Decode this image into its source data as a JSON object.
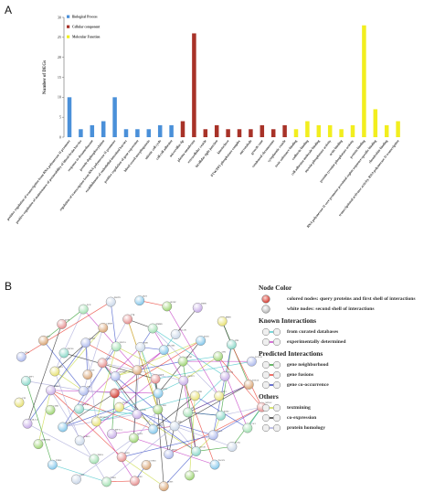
{
  "panel_a_label": "A",
  "panel_b_label": "B",
  "chart_data": {
    "type": "bar",
    "ylabel": "Number of DEGs",
    "xlabel": "",
    "ylim": [
      0,
      30
    ],
    "yticks": [
      0,
      5,
      10,
      15,
      20,
      25,
      30
    ],
    "legend_position": "top-left",
    "series": [
      {
        "name": "Biological Process",
        "color": "#4a90d9",
        "categories": [
          "positive regulation of transcription from RNA polymerase II promoter",
          "positive regulation of maintenance of permeability of blood-brain barrier",
          "response to dexamethasone",
          "protein dephosphorylation",
          "regulation of transcription from RNA polymerase II promoter",
          "establishment of endothelial intestinal barrier",
          "positive regulation of gene expression",
          "blood vessel morphogenesis",
          "mitotic cell cycle",
          "cell-cell adhesion"
        ],
        "values": [
          10,
          2,
          3,
          4,
          10,
          2,
          2,
          2,
          3,
          3
        ]
      },
      {
        "name": "Cellular component",
        "color": "#a83228",
        "categories": [
          "microvillus tip",
          "plasma membrane",
          "extracellular vesicle",
          "bicellular tight junction",
          "kinetochore",
          "PTW/PP1 phosphatase complex",
          "microtubule",
          "growth cone",
          "condensed chromosome",
          "cytoplasmic vesicle"
        ],
        "values": [
          4,
          26,
          2,
          3,
          2,
          2,
          2,
          3,
          2,
          3
        ]
      },
      {
        "name": "Molecular Function",
        "color": "#f2ee1e",
        "categories": [
          "toxic substance binding",
          "cadherin binding",
          "cell adhesion molecule binding",
          "myosin phosphatase activity",
          "actin binding",
          "protein tyrosine phosphatase activity",
          "protein binding",
          "RNA polymerase II core promoter proximal region sequence-specific binding",
          "chondroitin binding",
          "transcriptional activator activity, RNA polymerase II transcription"
        ],
        "values": [
          2,
          4,
          3,
          3,
          2,
          3,
          28,
          7,
          3,
          4
        ]
      }
    ]
  },
  "network": {
    "nodes": [
      {
        "id": "n1",
        "label": "PTPN5"
      },
      {
        "id": "n2",
        "label": "CDH5"
      },
      {
        "id": "n3",
        "label": "MYH9"
      },
      {
        "id": "n4",
        "label": "ITGB1"
      },
      {
        "id": "n5",
        "label": "ACTB"
      },
      {
        "id": "n6",
        "label": "CTNNB1"
      },
      {
        "id": "n7",
        "label": "SRC"
      },
      {
        "id": "n8",
        "label": "EGFR"
      },
      {
        "id": "n9",
        "label": "VCL"
      },
      {
        "id": "n10",
        "label": "TJP1"
      },
      {
        "id": "n11",
        "label": "CLDN5"
      },
      {
        "id": "n12",
        "label": "OCLN"
      },
      {
        "id": "n13",
        "label": "PPP1CA"
      },
      {
        "id": "n14",
        "label": "PPP1R12A"
      },
      {
        "id": "n15",
        "label": "MAPK1"
      },
      {
        "id": "n16",
        "label": "JUN"
      },
      {
        "id": "n17",
        "label": "FOS"
      },
      {
        "id": "n18",
        "label": "STAT3"
      },
      {
        "id": "n19",
        "label": "VEGFA"
      },
      {
        "id": "n20",
        "label": "KDR"
      },
      {
        "id": "n21",
        "label": "PECAM1"
      },
      {
        "id": "n22",
        "label": "ESAM"
      },
      {
        "id": "n23",
        "label": "ANGPT2"
      },
      {
        "id": "n24",
        "label": "TEK"
      },
      {
        "id": "n25",
        "label": "CDC20"
      },
      {
        "id": "n26",
        "label": "BUB1"
      },
      {
        "id": "n27",
        "label": "CCNB1"
      },
      {
        "id": "n28",
        "label": "KIF11"
      },
      {
        "id": "n29",
        "label": "TOP2A"
      },
      {
        "id": "n30",
        "label": "AURKA"
      },
      {
        "id": "n31",
        "label": "PLK1"
      },
      {
        "id": "n32",
        "label": "CDK1"
      },
      {
        "id": "n33",
        "label": "MKI67"
      },
      {
        "id": "n34",
        "label": "NUF2"
      },
      {
        "id": "n35",
        "label": "NDC80"
      },
      {
        "id": "n36",
        "label": "ZWINT"
      },
      {
        "id": "n37",
        "label": "CENPF"
      },
      {
        "id": "n38",
        "label": "TTK"
      },
      {
        "id": "n39",
        "label": "HMMR"
      },
      {
        "id": "n40",
        "label": "DLGAP5"
      },
      {
        "id": "n41",
        "label": "EGR1"
      },
      {
        "id": "n42",
        "label": "ATF3"
      },
      {
        "id": "n43",
        "label": "KLF4"
      },
      {
        "id": "n44",
        "label": "MYC"
      },
      {
        "id": "n45",
        "label": "SOX2"
      },
      {
        "id": "n46",
        "label": "NR4A1"
      },
      {
        "id": "n47",
        "label": "DUSP1"
      },
      {
        "id": "n48",
        "label": "IER2"
      },
      {
        "id": "n49",
        "label": "CYR61"
      },
      {
        "id": "n50",
        "label": "CTGF"
      },
      {
        "id": "n51",
        "label": "THBS1"
      },
      {
        "id": "n52",
        "label": "SERPINE1"
      },
      {
        "id": "n53",
        "label": "COL1A1"
      },
      {
        "id": "n54",
        "label": "FN1"
      },
      {
        "id": "n55",
        "label": "SPP1"
      },
      {
        "id": "n56",
        "label": "CD44"
      },
      {
        "id": "n57",
        "label": "TNC"
      },
      {
        "id": "n58",
        "label": "LUM"
      },
      {
        "id": "n59",
        "label": "DCN"
      },
      {
        "id": "n60",
        "label": "POSTN"
      },
      {
        "id": "n61",
        "label": "BGN"
      },
      {
        "id": "n62",
        "label": "SPARC"
      },
      {
        "id": "n63",
        "label": "TIMP1"
      },
      {
        "id": "n64",
        "label": "MMP2"
      },
      {
        "id": "n65",
        "label": "VIM"
      },
      {
        "id": "n66",
        "label": "LGALS1"
      },
      {
        "id": "n67",
        "label": "S100A6"
      },
      {
        "id": "n68",
        "label": "ANXA2"
      },
      {
        "id": "n69",
        "label": "CAV1"
      },
      {
        "id": "n70",
        "label": "FLNA"
      },
      {
        "id": "n71",
        "label": "TAGLN"
      },
      {
        "id": "n72",
        "label": "CNN1"
      }
    ]
  },
  "legend": {
    "node_color": {
      "heading": "Node Color",
      "items": [
        {
          "icon": "colored-node-icon",
          "label": "colored nodes: query proteins and first shell of interactions"
        },
        {
          "icon": "white-node-icon",
          "label": "white nodes: second shell of interactions"
        }
      ]
    },
    "known": {
      "heading": "Known Interactions",
      "items": [
        {
          "color": "#40c4c8",
          "label": "from curated databases"
        },
        {
          "color": "#c238c2",
          "label": "experimentally determined"
        }
      ]
    },
    "predicted": {
      "heading": "Predicted Interactions",
      "items": [
        {
          "color": "#2a9a2a",
          "label": "gene neighborhood"
        },
        {
          "color": "#e8352a",
          "label": "gene fusions"
        },
        {
          "color": "#2a38b8",
          "label": "gene co-occurrence"
        }
      ]
    },
    "others": {
      "heading": "Others",
      "items": [
        {
          "color": "#c6d83a",
          "label": "textmining"
        },
        {
          "color": "#222222",
          "label": "co-expression"
        },
        {
          "color": "#a8a8d8",
          "label": "protein homology"
        }
      ]
    }
  }
}
